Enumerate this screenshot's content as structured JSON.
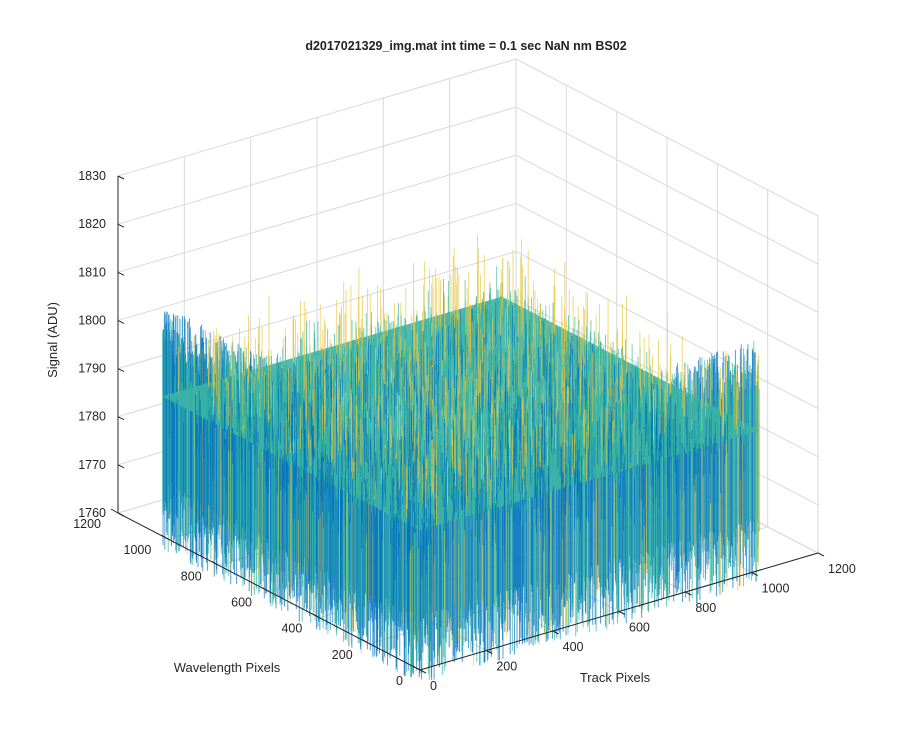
{
  "chart_data": {
    "type": "surface",
    "title": "d2017021329_img.mat int time = 0.1 sec  NaN nm BS02",
    "xlabel": "Track Pixels",
    "ylabel": "Wavelength Pixels",
    "zlabel": "Signal (ADU)",
    "xlim": [
      0,
      1200
    ],
    "ylim": [
      0,
      1200
    ],
    "zlim": [
      1760,
      1830
    ],
    "x_ticks": [
      "0",
      "200",
      "400",
      "600",
      "800",
      "1000",
      "1200"
    ],
    "y_ticks": [
      "0",
      "200",
      "400",
      "600",
      "800",
      "1000",
      "1200"
    ],
    "z_ticks": [
      "1760",
      "1770",
      "1780",
      "1790",
      "1800",
      "1810",
      "1820",
      "1830"
    ],
    "data_extent": {
      "x": [
        0,
        1024
      ],
      "y": [
        0,
        1024
      ]
    },
    "signal_mean": 1789,
    "signal_noise_range": [
      1762,
      1826
    ],
    "grid": true,
    "colormap": "parula",
    "colors": {
      "low": "#0072bd",
      "mid": "#2fb4a0",
      "high": "#e6c63c"
    }
  }
}
